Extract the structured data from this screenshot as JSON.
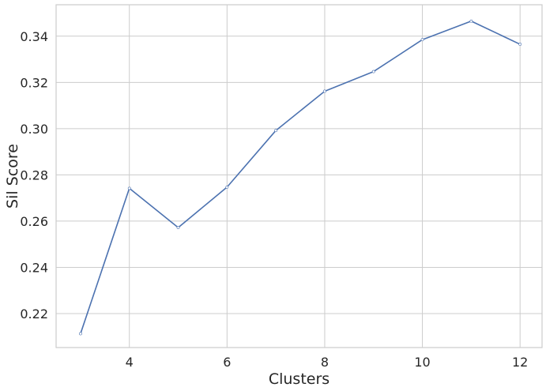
{
  "chart_data": {
    "type": "line",
    "title": "",
    "xlabel": "Clusters",
    "ylabel": "Sil Score",
    "x": [
      3,
      4,
      5,
      6,
      7,
      8,
      9,
      10,
      11,
      12
    ],
    "series": [
      {
        "name": "",
        "values": [
          0.2113,
          0.2742,
          0.2572,
          0.2747,
          0.2992,
          0.3162,
          0.3247,
          0.3385,
          0.3465,
          0.3365
        ]
      }
    ],
    "xlim": [
      2.5,
      12.45
    ],
    "ylim": [
      0.2053,
      0.3536
    ],
    "xticks": [
      "4",
      "6",
      "8",
      "10",
      "12"
    ],
    "yticks": [
      "0.22",
      "0.24",
      "0.26",
      "0.28",
      "0.30",
      "0.32",
      "0.34"
    ],
    "grid": true,
    "line_color": "#4c72b0",
    "grid_color": "#cccccc",
    "spine_color": "#cccccc"
  }
}
